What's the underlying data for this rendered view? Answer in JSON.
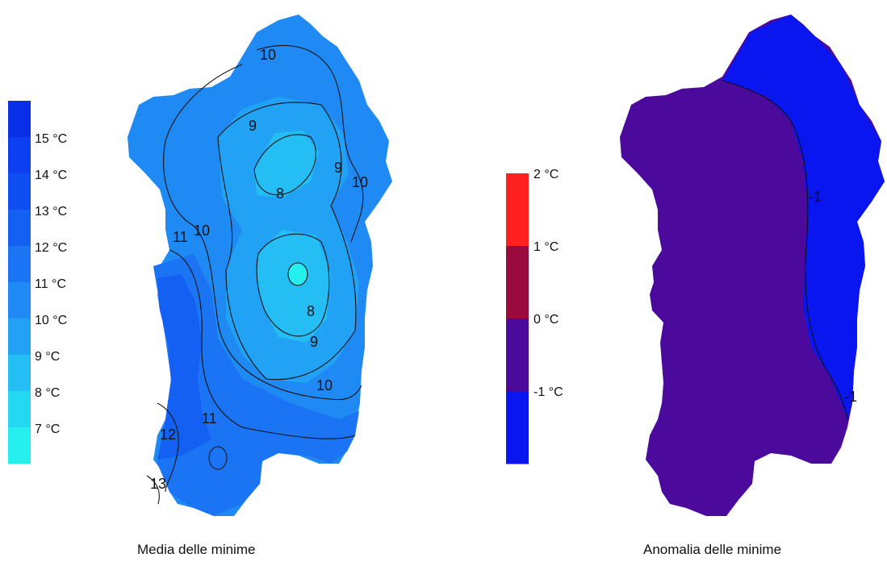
{
  "left_map": {
    "caption": "Media delle minime",
    "colorbar": {
      "labels": [
        "15 °C",
        "14 °C",
        "13 °C",
        "12 °C",
        "11 °C",
        "10 °C",
        "9 °C",
        "8 °C",
        "7 °C"
      ],
      "colors": [
        "#0a2fe8",
        "#0b3ff0",
        "#0f4ff2",
        "#1460f3",
        "#1a74f3",
        "#1f8af4",
        "#22a2f4",
        "#24bdf4",
        "#25d8f2",
        "#26f0ee"
      ]
    },
    "contour_labels": [
      "10",
      "9",
      "9",
      "8",
      "10",
      "11",
      "10",
      "8",
      "9",
      "10",
      "11",
      "12",
      "13"
    ],
    "colors": {
      "c12": "#1460f3",
      "c11": "#1a74f3",
      "c10": "#1f8af4",
      "c9": "#22a2f4",
      "c8": "#24bdf4",
      "c7": "#26f0ee"
    }
  },
  "right_map": {
    "caption": "Anomalia delle minime",
    "colorbar": {
      "labels": [
        "2 °C",
        "1 °C",
        "0 °C",
        "-1 °C"
      ],
      "colors": [
        "#ff2020",
        "#9b0a3e",
        "#4b0a9b",
        "#0a16f0"
      ]
    },
    "contour_labels": [
      "-1",
      "-1"
    ],
    "colors": {
      "neg_fill": "#4b0a9b",
      "strong_fill": "#0a16f0"
    }
  }
}
